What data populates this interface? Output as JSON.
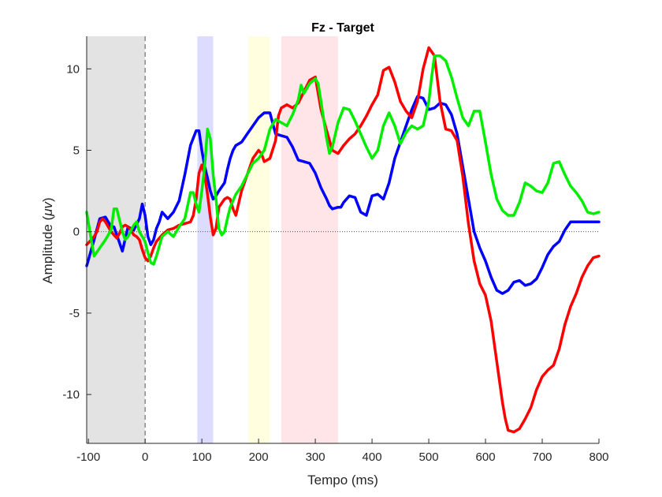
{
  "chart_data": {
    "type": "line",
    "title": "Fz - Target",
    "xlabel": "Tempo (ms)",
    "ylabel": "Amplitude (",
    "ylabel_symbol": "μv",
    "ylabel_close": ")",
    "xlim": [
      -103,
      800
    ],
    "ylim": [
      -13,
      12
    ],
    "xticks": [
      -100,
      0,
      100,
      200,
      300,
      400,
      500,
      600,
      700,
      800
    ],
    "xtick_labels": [
      "-100",
      "0",
      "100",
      "200",
      "300",
      "400",
      "500",
      "600",
      "700",
      "800"
    ],
    "yticks": [
      -10,
      -5,
      0,
      5,
      10
    ],
    "ytick_labels": [
      "-10",
      "-5",
      "0",
      "5",
      "10"
    ],
    "grid": false,
    "shaded_regions": [
      {
        "x0": -103,
        "x1": 0,
        "color": "#e3e3e3"
      },
      {
        "x0": 92,
        "x1": 120,
        "color": "#dcdcff"
      },
      {
        "x0": 182,
        "x1": 220,
        "color": "#ffffe0"
      },
      {
        "x0": 240,
        "x1": 340,
        "color": "#ffe4e8"
      }
    ],
    "zero_line": {
      "y": 0,
      "style": "dotted"
    },
    "stimulus_line": {
      "x": 0,
      "style": "dashed"
    },
    "series": [
      {
        "color": "#0000ff",
        "x": [
          -103,
          -90,
          -80,
          -70,
          -60,
          -55,
          -50,
          -40,
          -30,
          -20,
          -10,
          -5,
          0,
          5,
          10,
          15,
          20,
          25,
          30,
          40,
          50,
          60,
          70,
          80,
          90,
          95,
          100,
          105,
          110,
          115,
          120,
          125,
          130,
          140,
          145,
          150,
          155,
          160,
          170,
          180,
          190,
          200,
          210,
          220,
          230,
          240,
          250,
          260,
          270,
          280,
          290,
          300,
          310,
          320,
          325,
          330,
          340,
          345,
          350,
          360,
          370,
          380,
          390,
          400,
          410,
          420,
          430,
          440,
          450,
          460,
          470,
          480,
          490,
          500,
          510,
          520,
          530,
          540,
          550,
          560,
          570,
          580,
          590,
          600,
          610,
          620,
          630,
          640,
          650,
          660,
          670,
          680,
          690,
          700,
          710,
          720,
          730,
          740,
          750,
          760,
          770,
          780,
          790,
          800
        ],
        "y": [
          -2.1,
          -0.5,
          0.8,
          0.9,
          0.3,
          0.3,
          -0.2,
          -1.2,
          0.3,
          0.1,
          0.8,
          1.7,
          1.0,
          -0.3,
          -0.8,
          -0.5,
          0.2,
          0.6,
          1.2,
          0.8,
          1.2,
          1.9,
          3.5,
          5.3,
          6.2,
          6.2,
          5.0,
          4.0,
          3.3,
          2.5,
          2.0,
          2.2,
          2.5,
          3.0,
          3.8,
          4.5,
          5.0,
          5.3,
          5.5,
          6.0,
          6.5,
          7.0,
          7.3,
          7.3,
          6.0,
          5.9,
          5.8,
          5.2,
          4.4,
          4.3,
          4.2,
          3.6,
          2.7,
          2.0,
          1.6,
          1.4,
          1.5,
          1.5,
          1.8,
          2.2,
          2.1,
          1.2,
          1.0,
          2.2,
          2.3,
          2.0,
          3.0,
          4.5,
          5.5,
          6.5,
          7.5,
          8.3,
          8.2,
          7.5,
          7.6,
          7.9,
          7.8,
          7.2,
          6.0,
          4.0,
          2.0,
          0.0,
          -1.0,
          -1.8,
          -2.8,
          -3.6,
          -3.8,
          -3.6,
          -3.1,
          -3.0,
          -3.3,
          -3.2,
          -2.9,
          -2.2,
          -1.4,
          -0.9,
          -0.6,
          0.1,
          0.6,
          0.6,
          0.6,
          0.6,
          0.6,
          0.6
        ]
      },
      {
        "color": "#ff0000",
        "x": [
          -103,
          -95,
          -90,
          -85,
          -80,
          -75,
          -70,
          -65,
          -60,
          -55,
          -50,
          -45,
          -40,
          -35,
          -30,
          -25,
          -20,
          -15,
          -10,
          -5,
          0,
          5,
          10,
          15,
          20,
          30,
          40,
          50,
          60,
          70,
          80,
          85,
          90,
          95,
          100,
          105,
          110,
          115,
          120,
          125,
          130,
          140,
          145,
          150,
          155,
          160,
          170,
          180,
          190,
          200,
          205,
          210,
          220,
          230,
          235,
          240,
          250,
          255,
          260,
          270,
          280,
          290,
          300,
          310,
          320,
          330,
          340,
          350,
          360,
          370,
          380,
          390,
          400,
          410,
          420,
          430,
          440,
          450,
          460,
          470,
          480,
          490,
          500,
          510,
          520,
          530,
          540,
          550,
          560,
          570,
          580,
          590,
          600,
          610,
          620,
          630,
          635,
          640,
          650,
          660,
          670,
          680,
          690,
          700,
          710,
          720,
          730,
          740,
          750,
          760,
          770,
          780,
          790,
          800
        ],
        "y": [
          -0.8,
          -0.5,
          -0.3,
          0.0,
          0.6,
          0.8,
          0.6,
          0.3,
          0.0,
          -0.2,
          -0.4,
          -0.1,
          0.3,
          0.4,
          0.3,
          0.1,
          -0.2,
          -0.3,
          -0.5,
          -1.1,
          -1.6,
          -1.8,
          -1.5,
          -1.0,
          -0.6,
          -0.2,
          0.1,
          0.2,
          0.4,
          0.5,
          0.6,
          1.0,
          2.0,
          3.6,
          4.1,
          3.5,
          2.3,
          0.9,
          -0.2,
          0.2,
          1.5,
          2.0,
          2.1,
          2.0,
          1.4,
          1.0,
          2.5,
          3.5,
          4.5,
          5.0,
          4.8,
          4.3,
          4.5,
          5.6,
          7.1,
          7.6,
          7.8,
          7.7,
          7.6,
          7.9,
          8.6,
          9.3,
          9.5,
          7.5,
          6.2,
          5.0,
          4.8,
          5.3,
          5.7,
          6.0,
          6.5,
          7.1,
          7.8,
          8.4,
          9.9,
          10.1,
          9.2,
          8.0,
          7.4,
          7.0,
          8.0,
          10.0,
          11.3,
          10.8,
          8.0,
          6.3,
          6.2,
          5.6,
          3.4,
          0.5,
          -1.8,
          -3.2,
          -3.9,
          -5.5,
          -8.0,
          -10.5,
          -11.5,
          -12.2,
          -12.3,
          -12.1,
          -11.5,
          -10.8,
          -9.7,
          -8.9,
          -8.5,
          -8.2,
          -7.2,
          -5.7,
          -4.6,
          -3.8,
          -2.8,
          -2.1,
          -1.6,
          -1.5
        ]
      },
      {
        "color": "#00ee00",
        "x": [
          -103,
          -95,
          -90,
          -80,
          -70,
          -60,
          -55,
          -50,
          -40,
          -35,
          -30,
          -20,
          -15,
          -10,
          0,
          5,
          10,
          15,
          20,
          30,
          40,
          50,
          60,
          70,
          80,
          85,
          90,
          95,
          100,
          105,
          110,
          115,
          120,
          125,
          130,
          135,
          140,
          145,
          150,
          160,
          170,
          180,
          190,
          200,
          210,
          220,
          230,
          240,
          250,
          260,
          270,
          275,
          280,
          290,
          300,
          305,
          310,
          320,
          325,
          330,
          340,
          350,
          360,
          370,
          380,
          390,
          400,
          410,
          420,
          430,
          440,
          450,
          460,
          470,
          480,
          490,
          500,
          505,
          510,
          520,
          530,
          540,
          550,
          560,
          570,
          580,
          590,
          600,
          610,
          620,
          630,
          640,
          650,
          660,
          670,
          680,
          690,
          700,
          710,
          720,
          730,
          740,
          750,
          760,
          770,
          780,
          790,
          800
        ],
        "y": [
          1.2,
          -0.5,
          -1.5,
          -1.0,
          -0.5,
          0.1,
          1.4,
          1.4,
          0.0,
          -0.5,
          -0.3,
          0.4,
          0.6,
          0.0,
          -0.6,
          -1.3,
          -1.9,
          -2.0,
          -1.5,
          -0.3,
          0.0,
          -0.3,
          0.3,
          0.8,
          2.4,
          2.4,
          1.7,
          1.2,
          2.5,
          4.0,
          6.3,
          5.7,
          3.5,
          2.0,
          0.2,
          -0.2,
          0.0,
          0.8,
          1.5,
          2.3,
          2.8,
          3.5,
          4.2,
          4.5,
          5.0,
          6.3,
          6.9,
          6.7,
          6.5,
          7.2,
          8.1,
          9.0,
          8.5,
          9.1,
          9.4,
          9.1,
          8.0,
          5.7,
          4.8,
          5.2,
          6.7,
          7.6,
          7.5,
          6.8,
          6.0,
          5.2,
          4.5,
          5.0,
          6.5,
          7.3,
          6.5,
          5.4,
          6.1,
          6.5,
          6.3,
          6.5,
          8.0,
          9.5,
          10.8,
          10.8,
          10.5,
          9.5,
          8.2,
          7.0,
          6.5,
          7.4,
          7.4,
          5.5,
          3.5,
          2.0,
          1.3,
          1.0,
          1.0,
          1.8,
          3.0,
          2.8,
          2.5,
          2.4,
          3.0,
          4.2,
          4.3,
          3.5,
          2.8,
          2.4,
          1.9,
          1.2,
          1.1,
          1.2
        ]
      }
    ]
  }
}
